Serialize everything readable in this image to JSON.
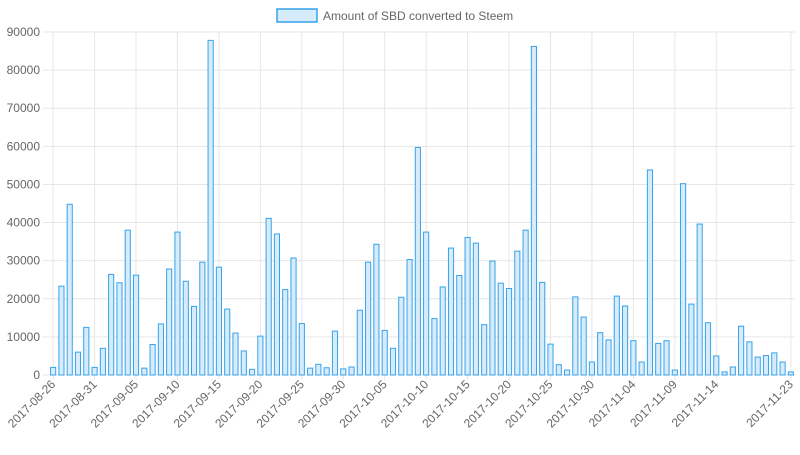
{
  "colors": {
    "bar_fill": "#d7ecfb",
    "bar_stroke": "#36a2eb",
    "grid": "#e6e6e6",
    "axis_text": "#666666"
  },
  "legend": {
    "label": "Amount of SBD converted to Steem"
  },
  "chart_data": {
    "type": "bar",
    "title": "",
    "xlabel": "",
    "ylabel": "",
    "ylim": [
      0,
      90000
    ],
    "yticks": [
      0,
      10000,
      20000,
      30000,
      40000,
      50000,
      60000,
      70000,
      80000,
      90000
    ],
    "grid": true,
    "legend_position": "top",
    "categories": [
      "2017-08-26",
      "2017-08-27",
      "2017-08-28",
      "2017-08-29",
      "2017-08-30",
      "2017-08-31",
      "2017-09-01",
      "2017-09-02",
      "2017-09-03",
      "2017-09-04",
      "2017-09-05",
      "2017-09-06",
      "2017-09-07",
      "2017-09-08",
      "2017-09-09",
      "2017-09-10",
      "2017-09-11",
      "2017-09-12",
      "2017-09-13",
      "2017-09-14",
      "2017-09-15",
      "2017-09-16",
      "2017-09-17",
      "2017-09-18",
      "2017-09-19",
      "2017-09-20",
      "2017-09-21",
      "2017-09-22",
      "2017-09-23",
      "2017-09-24",
      "2017-09-25",
      "2017-09-26",
      "2017-09-27",
      "2017-09-28",
      "2017-09-29",
      "2017-09-30",
      "2017-10-01",
      "2017-10-02",
      "2017-10-03",
      "2017-10-04",
      "2017-10-05",
      "2017-10-06",
      "2017-10-07",
      "2017-10-08",
      "2017-10-09",
      "2017-10-10",
      "2017-10-11",
      "2017-10-12",
      "2017-10-13",
      "2017-10-14",
      "2017-10-15",
      "2017-10-16",
      "2017-10-17",
      "2017-10-18",
      "2017-10-19",
      "2017-10-20",
      "2017-10-21",
      "2017-10-22",
      "2017-10-23",
      "2017-10-24",
      "2017-10-25",
      "2017-10-26",
      "2017-10-27",
      "2017-10-28",
      "2017-10-29",
      "2017-10-30",
      "2017-10-31",
      "2017-11-01",
      "2017-11-02",
      "2017-11-03",
      "2017-11-04",
      "2017-11-05",
      "2017-11-06",
      "2017-11-07",
      "2017-11-08",
      "2017-11-09",
      "2017-11-10",
      "2017-11-11",
      "2017-11-12",
      "2017-11-13",
      "2017-11-14",
      "2017-11-15",
      "2017-11-16",
      "2017-11-17",
      "2017-11-18",
      "2017-11-19",
      "2017-11-20",
      "2017-11-21",
      "2017-11-22",
      "2017-11-23"
    ],
    "tick_labels": [
      "2017-08-26",
      "2017-08-31",
      "2017-09-05",
      "2017-09-10",
      "2017-09-15",
      "2017-09-20",
      "2017-09-25",
      "2017-09-30",
      "2017-10-05",
      "2017-10-10",
      "2017-10-15",
      "2017-10-20",
      "2017-10-25",
      "2017-10-30",
      "2017-11-04",
      "2017-11-09",
      "2017-11-14",
      "2017-11-23"
    ],
    "series": [
      {
        "name": "Amount of SBD converted to Steem",
        "values": [
          2000,
          23300,
          44800,
          6000,
          12500,
          2000,
          7000,
          26400,
          24200,
          38000,
          26200,
          1800,
          8000,
          13400,
          27800,
          37500,
          24600,
          18000,
          29600,
          87800,
          28300,
          17300,
          11000,
          6300,
          1500,
          10200,
          41100,
          37000,
          22400,
          30700,
          13500,
          1800,
          2800,
          1900,
          11500,
          1600,
          2100,
          17000,
          29600,
          34300,
          11700,
          7000,
          20400,
          30300,
          59700,
          37500,
          14800,
          23100,
          33300,
          26100,
          36100,
          34600,
          13200,
          29900,
          24100,
          22700,
          32500,
          38000,
          86200,
          24300,
          8100,
          2700,
          1300,
          20500,
          15200,
          3400,
          11100,
          9200,
          20700,
          18100,
          9000,
          3400,
          53800,
          8300,
          9000,
          1300,
          50200,
          18600,
          39600,
          13700,
          5000,
          800,
          2100,
          12800,
          8700,
          4700,
          5100,
          5800,
          3400,
          800
        ]
      }
    ]
  }
}
